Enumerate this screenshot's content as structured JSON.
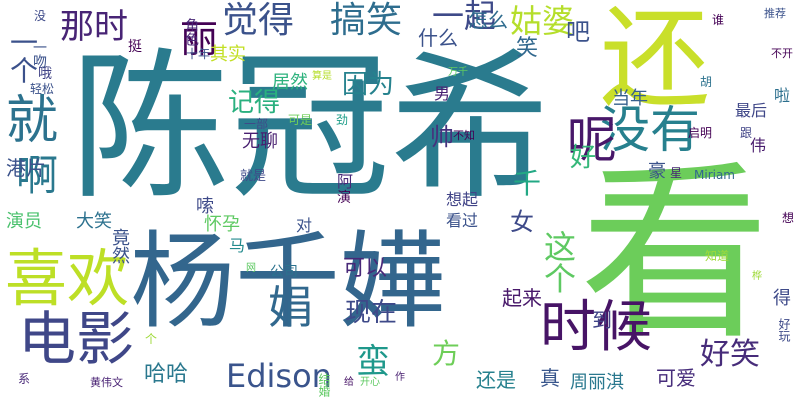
{
  "words": [
    {
      "text": "陈冠希",
      "color": "#2a7b8e",
      "vertical": false
    },
    {
      "text": "还",
      "color": "#c9df2a",
      "vertical": false
    },
    {
      "text": "看",
      "color": "#6ccd5a",
      "vertical": false
    },
    {
      "text": "杨千嬅",
      "color": "#33668d",
      "vertical": false
    },
    {
      "text": "喜欢",
      "color": "#bddf26",
      "vertical": false
    },
    {
      "text": "电影",
      "color": "#3f4788",
      "vertical": false
    },
    {
      "text": "时候",
      "color": "#471466",
      "vertical": false
    },
    {
      "text": "就",
      "color": "#2c728e",
      "vertical": false
    },
    {
      "text": "没有",
      "color": "#27808e",
      "vertical": false
    },
    {
      "text": "呢",
      "color": "#481769",
      "vertical": false
    },
    {
      "text": "娟",
      "color": "#31688e",
      "vertical": false
    },
    {
      "text": "啊",
      "color": "#2a788e",
      "vertical": false
    },
    {
      "text": "搞笑",
      "color": "#2e6d8e",
      "vertical": false
    },
    {
      "text": "觉得",
      "color": "#3b528b",
      "vertical": false
    },
    {
      "text": "那时",
      "color": "#482475",
      "vertical": false
    },
    {
      "text": "丽",
      "color": "#440154",
      "vertical": false
    },
    {
      "text": "姑婆",
      "color": "#b5de2b",
      "vertical": false
    },
    {
      "text": "一起",
      "color": "#3e4a89",
      "vertical": false
    },
    {
      "text": "Edison",
      "color": "#3a548c",
      "vertical": false
    },
    {
      "text": "蛮",
      "color": "#1f988b",
      "vertical": false
    },
    {
      "text": "这个",
      "color": "#5ec962",
      "vertical": true
    },
    {
      "text": "好笑",
      "color": "#472c7a",
      "vertical": false
    },
    {
      "text": "现在",
      "color": "#3e4989",
      "vertical": false
    },
    {
      "text": "一个",
      "color": "#3b518b",
      "vertical": true
    },
    {
      "text": "记得",
      "color": "#2ab07f",
      "vertical": false
    },
    {
      "text": "因为",
      "color": "#26828e",
      "vertical": false
    },
    {
      "text": "方",
      "color": "#6ece58",
      "vertical": false
    },
    {
      "text": "千",
      "color": "#22a884",
      "vertical": false
    },
    {
      "text": "好",
      "color": "#35b779",
      "vertical": false
    },
    {
      "text": "帅",
      "color": "#46327e",
      "vertical": false
    },
    {
      "text": "女",
      "color": "#3e4a89",
      "vertical": false
    },
    {
      "text": "笑",
      "color": "#31688e",
      "vertical": false
    },
    {
      "text": "吧",
      "color": "#3b528b",
      "vertical": false
    },
    {
      "text": "怎么",
      "color": "#2f6c8e",
      "vertical": false
    },
    {
      "text": "什么",
      "color": "#3b528b",
      "vertical": false
    },
    {
      "text": "可以",
      "color": "#482878",
      "vertical": false
    },
    {
      "text": "哈哈",
      "color": "#2a788e",
      "vertical": false
    },
    {
      "text": "还是",
      "color": "#26818e",
      "vertical": false
    },
    {
      "text": "可爱",
      "color": "#472d7b",
      "vertical": false
    },
    {
      "text": "周丽淇",
      "color": "#2a788e",
      "vertical": false
    },
    {
      "text": "起来",
      "color": "#48186a",
      "vertical": false
    },
    {
      "text": "到",
      "color": "#414487",
      "vertical": false
    },
    {
      "text": "真",
      "color": "#39568c",
      "vertical": false
    },
    {
      "text": "港片",
      "color": "#3b528b",
      "vertical": false
    },
    {
      "text": "演员",
      "color": "#4ac16d",
      "vertical": false
    },
    {
      "text": "大笑",
      "color": "#2c718e",
      "vertical": false
    },
    {
      "text": "竟然",
      "color": "#3b528b",
      "vertical": true
    },
    {
      "text": "怀孕",
      "color": "#5ec962",
      "vertical": false
    },
    {
      "text": "嗦",
      "color": "#3e4a89",
      "vertical": false
    },
    {
      "text": "无聊",
      "color": "#481f70",
      "vertical": false
    },
    {
      "text": "居然",
      "color": "#2db27d",
      "vertical": false
    },
    {
      "text": "当年",
      "color": "#355f8d",
      "vertical": false
    },
    {
      "text": "最后",
      "color": "#3f4788",
      "vertical": false
    },
    {
      "text": "啦",
      "color": "#2d708e",
      "vertical": false
    },
    {
      "text": "伟",
      "color": "#481b6d",
      "vertical": false
    },
    {
      "text": "豪",
      "color": "#3b528b",
      "vertical": false
    },
    {
      "text": "想起",
      "color": "#414487",
      "vertical": false
    },
    {
      "text": "看过",
      "color": "#3b528b",
      "vertical": false
    },
    {
      "text": "马",
      "color": "#238a8d",
      "vertical": false
    },
    {
      "text": "对",
      "color": "#3b528b",
      "vertical": false
    },
    {
      "text": "公司",
      "color": "#2c728e",
      "vertical": false
    },
    {
      "text": "阿",
      "color": "#482878",
      "vertical": false
    },
    {
      "text": "演",
      "color": "#440154",
      "vertical": false
    },
    {
      "text": "男",
      "color": "#482173",
      "vertical": false
    },
    {
      "text": "角色",
      "color": "#482576",
      "vertical": true
    },
    {
      "text": "挺",
      "color": "#440154",
      "vertical": false
    },
    {
      "text": "十年",
      "color": "#3b528b",
      "vertical": false
    },
    {
      "text": "其实",
      "color": "#c2df23",
      "vertical": false
    },
    {
      "text": "哦",
      "color": "#414487",
      "vertical": false
    },
    {
      "text": "一部",
      "color": "#3e4a89",
      "vertical": false
    },
    {
      "text": "可是",
      "color": "#6ece58",
      "vertical": false
    },
    {
      "text": "劲",
      "color": "#1f9e89",
      "vertical": false
    },
    {
      "text": "不知",
      "color": "#440154",
      "vertical": false
    },
    {
      "text": "启明",
      "color": "#440154",
      "vertical": false
    },
    {
      "text": "跟",
      "color": "#414487",
      "vertical": false
    },
    {
      "text": "就是",
      "color": "#3e4a89",
      "vertical": false
    },
    {
      "text": "星",
      "color": "#482475",
      "vertical": false
    },
    {
      "text": "Miriam",
      "color": "#31688e",
      "vertical": false
    },
    {
      "text": "没",
      "color": "#3e4a89",
      "vertical": false
    },
    {
      "text": "谁",
      "color": "#440154",
      "vertical": false
    },
    {
      "text": "推荐",
      "color": "#3b528b",
      "vertical": false
    },
    {
      "text": "不开",
      "color": "#440154",
      "vertical": false
    },
    {
      "text": "胡",
      "color": "#2c728e",
      "vertical": false
    },
    {
      "text": "万千",
      "color": "#5ec962",
      "vertical": false
    },
    {
      "text": "算是",
      "color": "#b5de2b",
      "vertical": false
    },
    {
      "text": "轻松",
      "color": "#3b528b",
      "vertical": false
    },
    {
      "text": "知道",
      "color": "#9fda3a",
      "vertical": false
    },
    {
      "text": "网",
      "color": "#5ec962",
      "vertical": false
    },
    {
      "text": "个",
      "color": "#9fda3a",
      "vertical": false
    },
    {
      "text": "黄伟文",
      "color": "#482173",
      "vertical": false
    },
    {
      "text": "给",
      "color": "#471366",
      "vertical": false
    },
    {
      "text": "开心",
      "color": "#5ec962",
      "vertical": false
    },
    {
      "text": "作",
      "color": "#481f70",
      "vertical": false
    },
    {
      "text": "系",
      "color": "#482878",
      "vertical": false
    },
    {
      "text": "想",
      "color": "#440154",
      "vertical": false
    },
    {
      "text": "桦",
      "color": "#9fda3a",
      "vertical": false
    },
    {
      "text": "好玩",
      "color": "#3e4a89",
      "vertical": true
    },
    {
      "text": "得",
      "color": "#3e4a89",
      "vertical": false
    },
    {
      "text": "结婚",
      "color": "#5ec962",
      "vertical": true
    },
    {
      "text": "一吻",
      "color": "#3b528b",
      "vertical": true
    }
  ]
}
